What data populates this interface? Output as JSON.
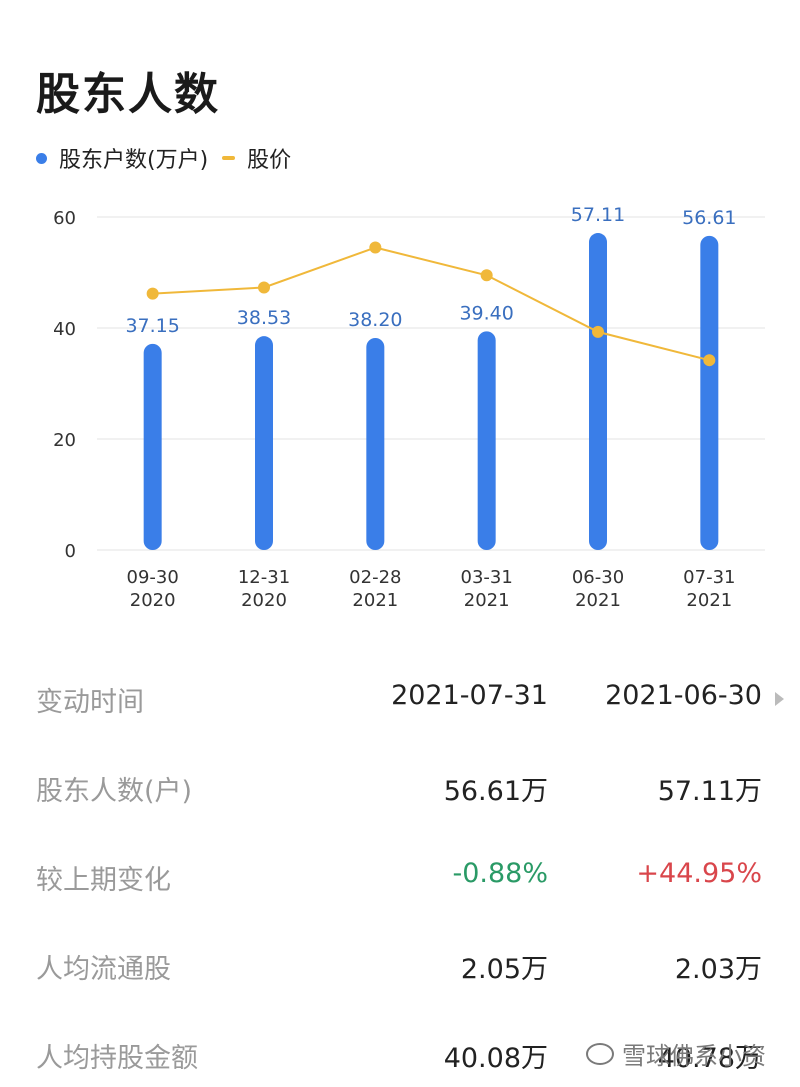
{
  "title": "股东人数",
  "legend": {
    "bars": "股东户数(万户)",
    "line": "股价"
  },
  "colors": {
    "bar": "#3a7ee8",
    "line": "#f0b83a",
    "label": "#3a6fbf",
    "positive": "#d9464b",
    "negative": "#2a9a66"
  },
  "chart_data": {
    "type": "bar",
    "categories": [
      [
        "09-30",
        "2020"
      ],
      [
        "12-31",
        "2020"
      ],
      [
        "02-28",
        "2021"
      ],
      [
        "03-31",
        "2021"
      ],
      [
        "06-30",
        "2021"
      ],
      [
        "07-31",
        "2021"
      ]
    ],
    "series": [
      {
        "name": "股东户数(万户)",
        "type": "bar",
        "values": [
          37.15,
          38.53,
          38.2,
          39.4,
          57.11,
          56.61
        ],
        "labels": [
          "37.15",
          "38.53",
          "38.20",
          "39.40",
          "57.11",
          "56.61"
        ]
      },
      {
        "name": "股价",
        "type": "line",
        "values": [
          46.2,
          47.3,
          54.5,
          49.5,
          39.3,
          34.2
        ]
      }
    ],
    "yticks": [
      0,
      20,
      40,
      60
    ],
    "ylim": [
      0,
      60
    ],
    "grid": true,
    "legend_position": "top-left"
  },
  "table": {
    "header": {
      "label": "变动时间",
      "col1": "2021-07-31",
      "col2": "2021-06-30"
    },
    "rows": [
      {
        "label": "股东人数(户)",
        "col1": "56.61万",
        "col2": "57.11万"
      },
      {
        "label": "较上期变化",
        "col1": "-0.88%",
        "col2": "+44.95%"
      },
      {
        "label": "人均流通股",
        "col1": "2.05万",
        "col2": "2.03万"
      },
      {
        "label": "人均持股金额",
        "col1": "40.08万",
        "col2": "40.78万"
      }
    ]
  },
  "watermark": "雪球佛系小资"
}
